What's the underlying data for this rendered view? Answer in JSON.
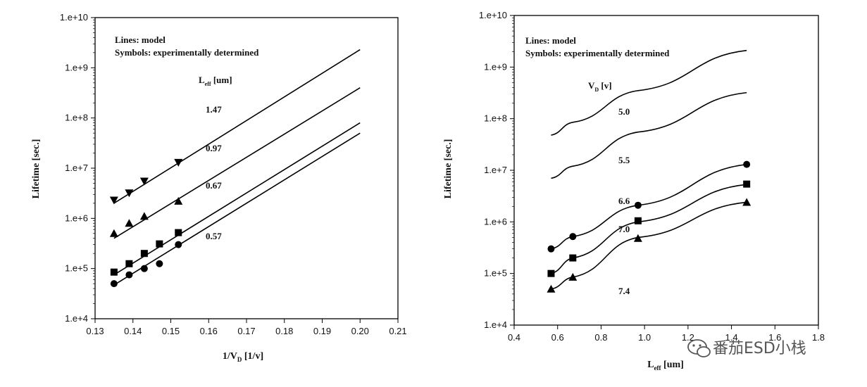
{
  "chart_data": [
    {
      "type": "line",
      "y_scale": "log",
      "xlim": [
        0.13,
        0.21
      ],
      "ylim": [
        10000,
        10000000000
      ],
      "x_ticks": [
        "0.13",
        "0.14",
        "0.15",
        "0.16",
        "0.17",
        "0.18",
        "0.19",
        "0.20",
        "0.21"
      ],
      "y_ticks": [
        "1.e+4",
        "1.e+5",
        "1.e+6",
        "1.e+7",
        "1.e+8",
        "1.e+9",
        "1.e+10"
      ],
      "xlabel": "1/V",
      "xlabel_sub": "D",
      "xlabel_tail": " [1/v]",
      "ylabel": "Lifetime [sec.]",
      "annotations": [
        "Lines: model",
        "Symbols: experimentally determined"
      ],
      "param_label": "L",
      "param_sub": "eff",
      "param_unit": " [um]",
      "grid": false,
      "series": [
        {
          "name": "1.47",
          "marker": "triangle-down",
          "line_x": [
            0.135,
            0.2
          ],
          "line_y": [
            2000000,
            2300000000
          ],
          "points_x": [
            0.135,
            0.139,
            0.143,
            0.152
          ],
          "points_y": [
            2300000,
            3200000,
            5500000,
            13000000
          ]
        },
        {
          "name": "0.97",
          "marker": "triangle-up",
          "line_x": [
            0.135,
            0.2
          ],
          "line_y": [
            400000,
            400000000
          ],
          "points_x": [
            0.135,
            0.139,
            0.143,
            0.152
          ],
          "points_y": [
            500000,
            800000,
            1100000,
            2200000
          ]
        },
        {
          "name": "0.67",
          "marker": "square",
          "line_x": [
            0.135,
            0.2
          ],
          "line_y": [
            75000,
            80000000
          ],
          "points_x": [
            0.135,
            0.139,
            0.143,
            0.147,
            0.152
          ],
          "points_y": [
            85000,
            125000,
            200000,
            310000,
            520000
          ]
        },
        {
          "name": "0.57",
          "marker": "circle",
          "line_x": [
            0.135,
            0.2
          ],
          "line_y": [
            47000,
            50000000
          ],
          "points_x": [
            0.135,
            0.139,
            0.143,
            0.147,
            0.152
          ],
          "points_y": [
            50000,
            75000,
            100000,
            125000,
            300000
          ]
        }
      ]
    },
    {
      "type": "line",
      "y_scale": "log",
      "xlim": [
        0.4,
        1.8
      ],
      "ylim": [
        10000,
        10000000000
      ],
      "x_ticks": [
        "0.4",
        "0.6",
        "0.8",
        "1.0",
        "1.2",
        "1.4",
        "1.6",
        "1.8"
      ],
      "y_ticks": [
        "1.e+4",
        "1.e+5",
        "1.e+6",
        "1.e+7",
        "1.e+8",
        "1.e+9",
        "1.e+10"
      ],
      "xlabel": "L",
      "xlabel_sub": "eff",
      "xlabel_tail": " [um]",
      "ylabel": "Lifetime [sec.]",
      "annotations": [
        "Lines: model",
        "Symbols: experimentally determined"
      ],
      "param_label": "V",
      "param_sub": "D",
      "param_unit": " [v]",
      "grid": false,
      "series": [
        {
          "name": "5.0",
          "marker": "none",
          "line_x": [
            0.57,
            0.67,
            0.97,
            1.47
          ],
          "line_y": [
            48000000,
            85000000,
            350000000,
            2100000000
          ],
          "points_x": [],
          "points_y": []
        },
        {
          "name": "5.5",
          "marker": "none",
          "line_x": [
            0.57,
            0.67,
            0.97,
            1.47
          ],
          "line_y": [
            7000000,
            12000000,
            55000000,
            320000000
          ],
          "points_x": [],
          "points_y": []
        },
        {
          "name": "6.6",
          "marker": "circle",
          "line_x": [
            0.57,
            0.67,
            0.97,
            1.47
          ],
          "line_y": [
            300000,
            520000,
            2100000,
            13000000
          ],
          "points_x": [
            0.57,
            0.67,
            0.97,
            1.47
          ],
          "points_y": [
            300000,
            520000,
            2100000,
            13000000
          ]
        },
        {
          "name": "7.0",
          "marker": "square",
          "line_x": [
            0.57,
            0.67,
            0.97,
            1.47
          ],
          "line_y": [
            100000,
            200000,
            1000000,
            5300000
          ],
          "points_x": [
            0.57,
            0.67,
            0.97,
            1.47
          ],
          "points_y": [
            100000,
            200000,
            1050000,
            5400000
          ]
        },
        {
          "name": "7.4",
          "marker": "triangle-up",
          "line_x": [
            0.57,
            0.67,
            0.97,
            1.47
          ],
          "line_y": [
            50000,
            85000,
            500000,
            2400000
          ],
          "points_x": [
            0.57,
            0.67,
            0.97,
            1.47
          ],
          "points_y": [
            50000,
            85000,
            480000,
            2400000
          ]
        }
      ]
    }
  ],
  "watermark": {
    "icon": "wechat-icon",
    "text": "番茄ESD小栈"
  }
}
